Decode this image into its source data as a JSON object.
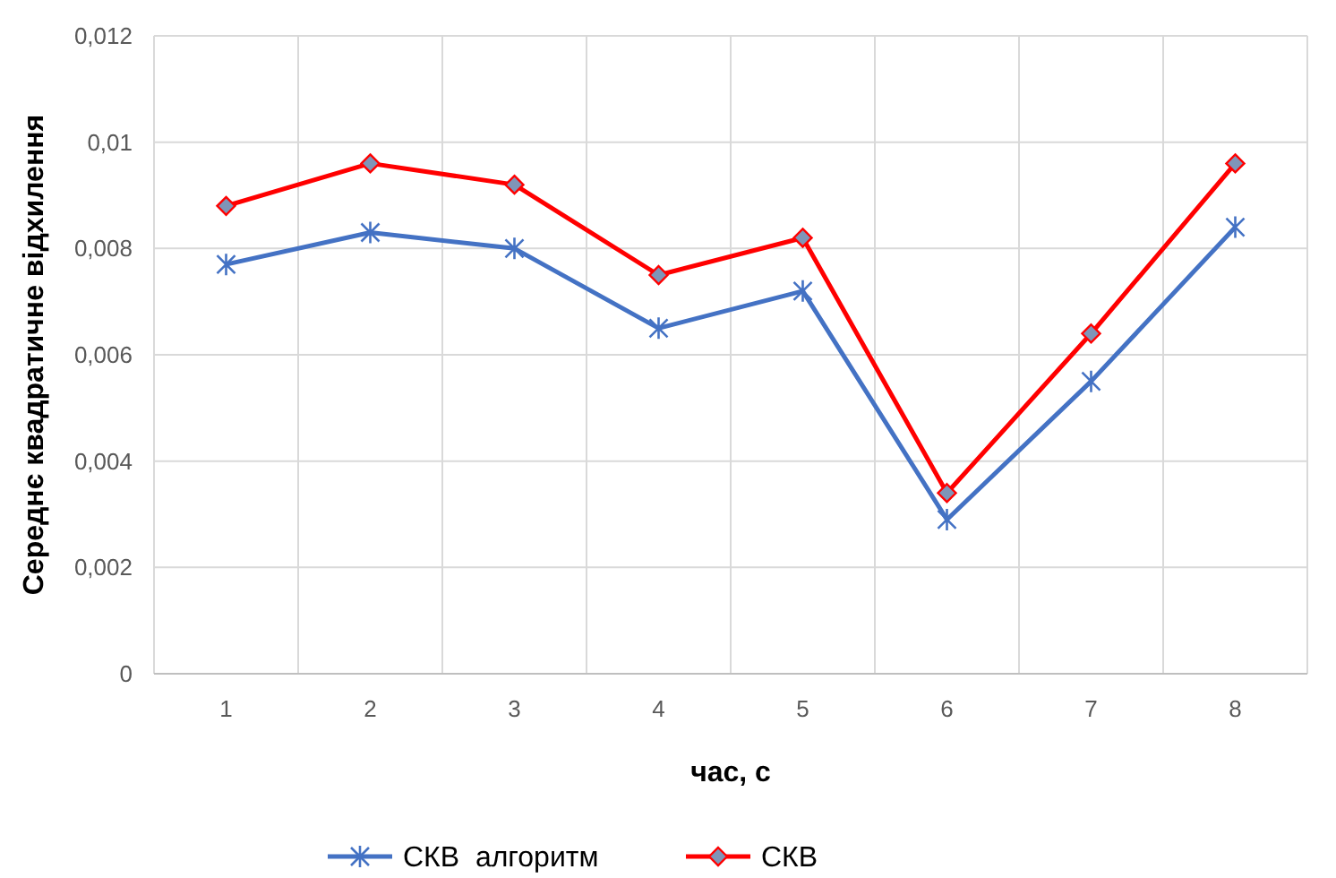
{
  "chart_data": {
    "type": "line",
    "xlabel": "час, с",
    "ylabel": "Середнє квадратичне відхилення",
    "categories": [
      "1",
      "2",
      "3",
      "4",
      "5",
      "6",
      "7",
      "8"
    ],
    "series": [
      {
        "name": "СКВ  алгоритм",
        "color": "#4472c4",
        "marker": "cross",
        "values": [
          0.0077,
          0.0083,
          0.008,
          0.0065,
          0.0072,
          0.0029,
          0.0055,
          0.0084
        ]
      },
      {
        "name": "СКВ",
        "color": "#ff0000",
        "marker": "diamond",
        "values": [
          0.0088,
          0.0096,
          0.0092,
          0.0075,
          0.0082,
          0.0034,
          0.0064,
          0.0096
        ]
      }
    ],
    "ylim": [
      0,
      0.012
    ],
    "yticks": [
      0,
      {
        "value": 0.002,
        "label": "0,002"
      },
      {
        "value": 0.004,
        "label": "0,004"
      },
      {
        "value": 0.006,
        "label": "0,006"
      },
      {
        "value": 0.008,
        "label": "0,008"
      },
      {
        "value": 0.01,
        "label": "0,01"
      },
      {
        "value": 0.012,
        "label": "0,012"
      }
    ],
    "grid": true,
    "legend": "bottom",
    "line_style": "solid"
  }
}
